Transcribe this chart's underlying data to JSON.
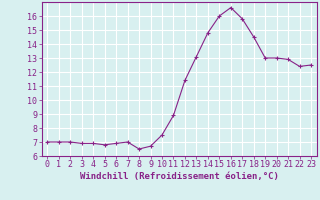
{
  "x": [
    0,
    1,
    2,
    3,
    4,
    5,
    6,
    7,
    8,
    9,
    10,
    11,
    12,
    13,
    14,
    15,
    16,
    17,
    18,
    19,
    20,
    21,
    22,
    23
  ],
  "y": [
    7.0,
    7.0,
    7.0,
    6.9,
    6.9,
    6.8,
    6.9,
    7.0,
    6.5,
    6.7,
    7.5,
    8.9,
    11.4,
    13.1,
    14.8,
    16.0,
    16.6,
    15.8,
    14.5,
    13.0,
    13.0,
    12.9,
    12.4,
    12.5
  ],
  "line_color": "#882288",
  "marker": "+",
  "marker_size": 3,
  "bg_color": "#d8f0f0",
  "grid_color": "#ffffff",
  "xlabel": "Windchill (Refroidissement éolien,°C)",
  "xlim": [
    -0.5,
    23.5
  ],
  "ylim": [
    6,
    17
  ],
  "yticks": [
    6,
    7,
    8,
    9,
    10,
    11,
    12,
    13,
    14,
    15,
    16
  ],
  "xticks": [
    0,
    1,
    2,
    3,
    4,
    5,
    6,
    7,
    8,
    9,
    10,
    11,
    12,
    13,
    14,
    15,
    16,
    17,
    18,
    19,
    20,
    21,
    22,
    23
  ],
  "label_fontsize": 6.5,
  "tick_fontsize": 6,
  "axis_color": "#882288",
  "line_width": 0.8,
  "marker_edge_width": 0.8
}
